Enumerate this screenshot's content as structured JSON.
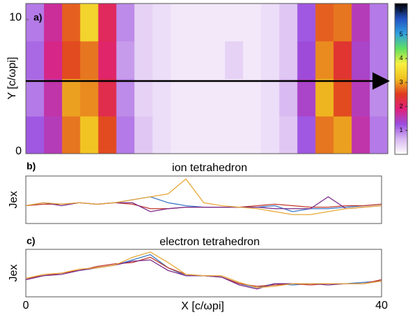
{
  "chart_data": [
    {
      "type": "heatmap",
      "label": "a)",
      "ylabel": "Y [c/ωpi]",
      "xlim": [
        0,
        40
      ],
      "ylim": [
        0,
        11.2
      ],
      "yticks": [
        0,
        10
      ],
      "x_edges": [
        0,
        2,
        4,
        6,
        8,
        10,
        12,
        14,
        16,
        18,
        20,
        22,
        24,
        26,
        28,
        30,
        32,
        34,
        36,
        38,
        40
      ],
      "y_edges": [
        0,
        2.8,
        5.6,
        8.4,
        11.2
      ],
      "values": [
        [
          1.2,
          1.5,
          2.8,
          3.2,
          2.6,
          1.0,
          0.5,
          0.3,
          0.2,
          0.2,
          0.2,
          0.2,
          0.2,
          0.3,
          0.5,
          1.2,
          2.8,
          3.0,
          1.6,
          1.0
        ],
        [
          1.0,
          1.6,
          3.0,
          2.9,
          2.2,
          0.9,
          0.4,
          0.3,
          0.2,
          0.2,
          0.2,
          0.2,
          0.2,
          0.3,
          0.6,
          1.4,
          3.1,
          2.6,
          1.5,
          0.9
        ],
        [
          1.1,
          1.8,
          2.6,
          2.8,
          2.0,
          0.8,
          0.4,
          0.3,
          0.2,
          0.2,
          0.2,
          0.4,
          0.2,
          0.3,
          0.5,
          1.3,
          2.9,
          2.4,
          1.4,
          1.0
        ],
        [
          1.0,
          1.7,
          2.7,
          3.4,
          2.1,
          0.9,
          0.4,
          0.3,
          0.2,
          0.2,
          0.2,
          0.2,
          0.2,
          0.3,
          0.5,
          1.2,
          2.7,
          2.8,
          1.5,
          1.0
        ]
      ],
      "clim": [
        0,
        6.3
      ],
      "cticks": [
        1,
        2,
        3,
        4,
        5,
        6
      ],
      "colormap": [
        "#ffffff",
        "#d8b8f0",
        "#9a4ee0",
        "#e0207a",
        "#e03a20",
        "#f0c020",
        "#f8f040",
        "#60e060",
        "#30a0e0",
        "#2050c0",
        "#000000"
      ]
    },
    {
      "type": "line",
      "label": "b)",
      "title": "ion tetrahedron",
      "ylabel": "Jex",
      "xlim": [
        0,
        40
      ],
      "ylim": [
        -0.6,
        1.0
      ],
      "x": [
        0,
        2,
        4,
        6,
        8,
        10,
        12,
        14,
        16,
        18,
        20,
        22,
        24,
        26,
        28,
        30,
        32,
        34,
        36,
        38,
        40
      ],
      "series": [
        {
          "color": "#3a78c8",
          "values": [
            0,
            0.1,
            0.05,
            0.1,
            0.05,
            0.1,
            0.2,
            0.3,
            0.1,
            0,
            -0.05,
            -0.05,
            -0.05,
            -0.05,
            0,
            -0.2,
            -0.1,
            -0.1,
            -0.05,
            0,
            0.05
          ]
        },
        {
          "color": "#c0392b",
          "values": [
            0,
            0.05,
            0.05,
            0.1,
            0.05,
            0.1,
            0.05,
            -0.1,
            -0.1,
            -0.05,
            -0.05,
            -0.05,
            -0.05,
            0,
            0.05,
            0,
            -0.05,
            -0.05,
            0,
            0,
            0.05
          ]
        },
        {
          "color": "#7a2a8a",
          "values": [
            0,
            0.1,
            0,
            0.1,
            0.05,
            0.1,
            0.1,
            -0.2,
            -0.1,
            -0.05,
            -0.05,
            -0.05,
            -0.05,
            -0.05,
            -0.1,
            -0.1,
            -0.1,
            0.3,
            -0.1,
            -0.05,
            0
          ]
        },
        {
          "color": "#e8a838",
          "values": [
            0,
            0.1,
            0.05,
            0.1,
            0.05,
            0.1,
            0.2,
            0.3,
            0.4,
            0.9,
            0.1,
            0,
            -0.05,
            -0.1,
            -0.2,
            -0.3,
            -0.3,
            -0.2,
            -0.1,
            -0.05,
            0
          ]
        }
      ]
    },
    {
      "type": "line",
      "label": "c)",
      "title": "electron tetrahedron",
      "ylabel": "Jex",
      "xlabel": "X [c/ωpi]",
      "xlim": [
        0,
        40
      ],
      "ylim": [
        -0.8,
        1.0
      ],
      "xticks": [
        0,
        40
      ],
      "x": [
        0,
        2,
        4,
        6,
        8,
        10,
        12,
        14,
        16,
        18,
        20,
        22,
        24,
        26,
        28,
        30,
        32,
        34,
        36,
        38,
        40
      ],
      "series": [
        {
          "color": "#3a78c8",
          "values": [
            -0.1,
            0,
            0.1,
            0.2,
            0.3,
            0.4,
            0.6,
            0.8,
            0.3,
            0,
            0,
            -0.05,
            -0.3,
            -0.45,
            -0.3,
            -0.35,
            -0.3,
            -0.3,
            -0.3,
            -0.25,
            -0.2
          ]
        },
        {
          "color": "#c0392b",
          "values": [
            -0.1,
            0,
            0.1,
            0.2,
            0.35,
            0.45,
            0.5,
            0.7,
            0.3,
            0.05,
            0,
            -0.05,
            -0.3,
            -0.4,
            -0.35,
            -0.3,
            -0.35,
            -0.3,
            -0.3,
            -0.3,
            -0.15
          ]
        },
        {
          "color": "#7a2a8a",
          "values": [
            -0.15,
            0,
            0.05,
            0.2,
            0.3,
            0.4,
            0.55,
            0.6,
            0.2,
            0,
            0,
            -0.05,
            -0.35,
            -0.5,
            -0.3,
            -0.3,
            -0.3,
            -0.35,
            -0.3,
            -0.3,
            -0.2
          ]
        },
        {
          "color": "#e8a838",
          "values": [
            -0.1,
            0.05,
            0.1,
            0.25,
            0.3,
            0.4,
            0.7,
            0.9,
            0.5,
            0.05,
            0,
            0,
            -0.25,
            -0.45,
            -0.4,
            -0.3,
            -0.3,
            -0.3,
            -0.3,
            -0.3,
            -0.2
          ]
        }
      ]
    }
  ]
}
